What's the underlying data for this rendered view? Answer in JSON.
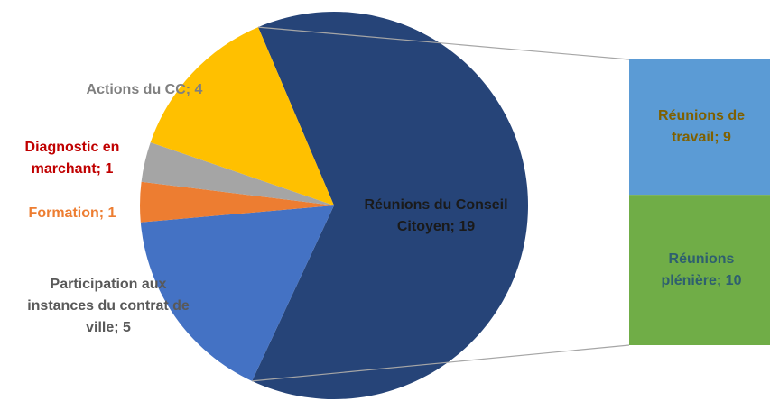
{
  "chart_data": {
    "type": "pie-of-bar",
    "categories": [
      "Réunions du Conseil Citoyen",
      "Participation aux instances du contrat de ville",
      "Formation",
      "Diagnostic en marchant",
      "Actions du CC"
    ],
    "values": [
      19,
      5,
      1,
      1,
      4
    ],
    "data_labels": [
      "Réunions du Conseil Citoyen; 19",
      "Participation aux instances du contrat de ville; 5",
      "Formation; 1",
      "Diagnostic en marchant; 1",
      "Actions du CC; 4"
    ],
    "colors": [
      "#264478",
      "#4472c4",
      "#ed7d31",
      "#a5a5a5",
      "#ffc000"
    ],
    "label_colors": [
      "#1a1a1a",
      "#595959",
      "#ed7d31",
      "#c00000",
      "#7f7f7f"
    ],
    "bar": {
      "categories": [
        "Réunions de travail",
        "Réunions plénière"
      ],
      "values": [
        9,
        10
      ],
      "data_labels": [
        "Réunions de travail; 9",
        "Réunions plénière; 10"
      ],
      "colors": [
        "#5b9bd5",
        "#70ad47"
      ],
      "label_colors": [
        "#7f6000",
        "#2e5f6f"
      ]
    }
  }
}
